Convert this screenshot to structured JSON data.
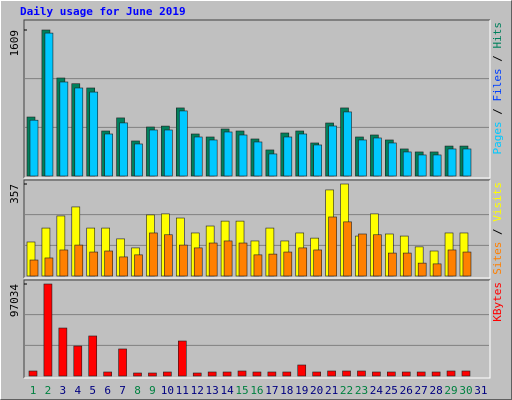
{
  "chart_data": [
    {
      "type": "bar",
      "title": "Daily usage for June 2019",
      "ylim": [
        0,
        1609
      ],
      "yticks": [
        1609
      ],
      "other_legend": {
        "name": "Files",
        "color": "#0040ff"
      },
      "series": [
        {
          "name": "Hits",
          "color": "#00805c",
          "values": [
            650,
            1609,
            1080,
            1017,
            970,
            496,
            640,
            386,
            540,
            550,
            750,
            463,
            430,
            518,
            496,
            408,
            287,
            474,
            496,
            364,
            584,
            750,
            430,
            452,
            397,
            298,
            265,
            265,
            330,
            330,
            null
          ]
        },
        {
          "name": "Pages",
          "color": "#00c8ff",
          "values": [
            615,
            1575,
            1036,
            970,
            925,
            463,
            585,
            353,
            507,
            507,
            717,
            430,
            397,
            485,
            452,
            375,
            243,
            430,
            463,
            342,
            551,
            706,
            397,
            419,
            364,
            265,
            232,
            232,
            298,
            298,
            null
          ]
        }
      ]
    },
    {
      "type": "bar",
      "ylim": [
        0,
        357
      ],
      "yticks": [
        357
      ],
      "series": [
        {
          "name": "Visits",
          "color": "#ffff00",
          "values": [
            132,
            186,
            233,
            268,
            186,
            186,
            144,
            109,
            237,
            241,
            225,
            167,
            194,
            213,
            213,
            136,
            186,
            136,
            167,
            147,
            334,
            357,
            155,
            241,
            163,
            155,
            113,
            97,
            167,
            167,
            null
          ]
        },
        {
          "name": "Sites",
          "color": "#ff8000",
          "values": [
            62,
            70,
            101,
            120,
            93,
            97,
            74,
            82,
            167,
            160,
            120,
            109,
            128,
            136,
            128,
            82,
            85,
            93,
            109,
            101,
            229,
            210,
            163,
            160,
            89,
            89,
            50,
            47,
            101,
            93,
            null
          ]
        }
      ]
    },
    {
      "type": "bar",
      "ylim": [
        0,
        97034
      ],
      "yticks": [
        97034
      ],
      "categories": [
        "1",
        "2",
        "3",
        "4",
        "5",
        "6",
        "7",
        "8",
        "9",
        "10",
        "11",
        "12",
        "13",
        "14",
        "15",
        "16",
        "17",
        "18",
        "19",
        "20",
        "21",
        "22",
        "23",
        "24",
        "25",
        "26",
        "27",
        "28",
        "29",
        "30",
        "31"
      ],
      "category_colors": [
        "#008040",
        "#008040",
        "#000080",
        "#000080",
        "#000080",
        "#000080",
        "#000080",
        "#008040",
        "#008040",
        "#000080",
        "#000080",
        "#000080",
        "#000080",
        "#000080",
        "#008040",
        "#008040",
        "#000080",
        "#000080",
        "#000080",
        "#000080",
        "#000080",
        "#008040",
        "#008040",
        "#000080",
        "#000080",
        "#000080",
        "#000080",
        "#000080",
        "#008040",
        "#008040",
        "#000080"
      ],
      "series": [
        {
          "name": "KBytes",
          "color": "#ff0000",
          "values": [
            5270,
            97034,
            50600,
            31600,
            42200,
            4220,
            28500,
            3160,
            3160,
            4220,
            36900,
            3160,
            4220,
            4220,
            5270,
            4220,
            4220,
            4220,
            11600,
            4220,
            5270,
            5270,
            5270,
            4220,
            4220,
            4220,
            4220,
            4220,
            5270,
            5270,
            null
          ]
        }
      ]
    }
  ]
}
